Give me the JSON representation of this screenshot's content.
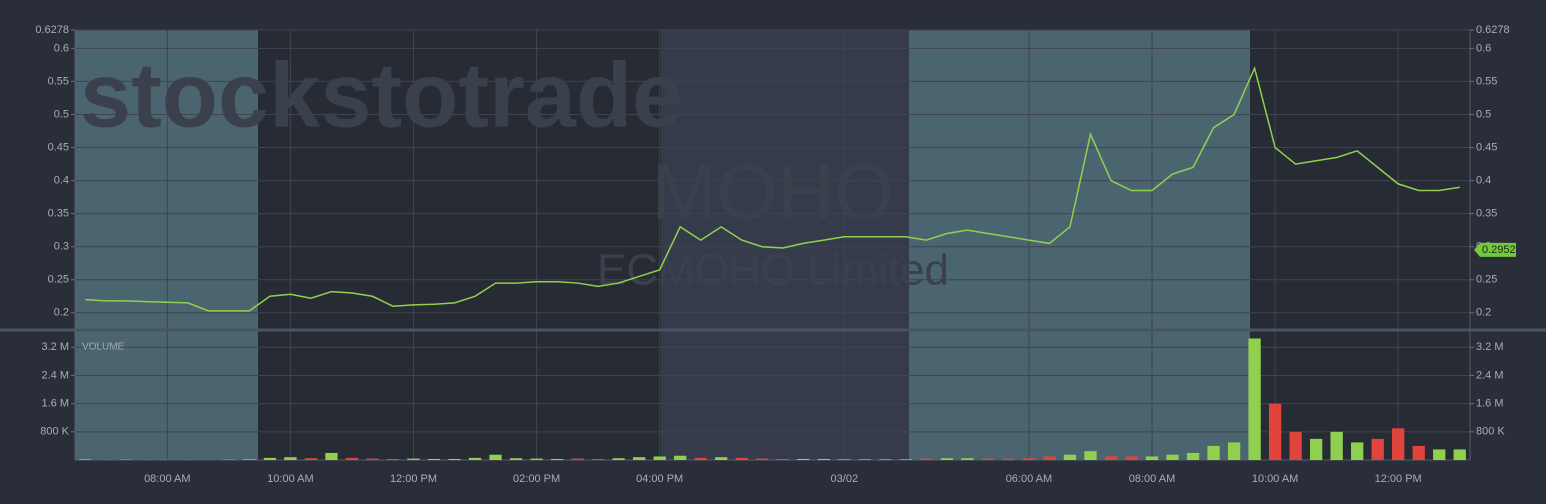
{
  "chart_data": [
    {
      "type": "line",
      "watermark": "stockstotrade",
      "symbol": "MOHO",
      "company": "ECMOHO Limited",
      "last_price": 0.2952,
      "color": "#8fd14f",
      "grid": true,
      "categories": [
        null,
        null,
        null,
        null,
        "08:00 AM",
        null,
        null,
        null,
        null,
        null,
        "10:00 AM",
        null,
        null,
        null,
        null,
        null,
        "12:00 PM",
        null,
        null,
        null,
        null,
        null,
        "02:00 PM",
        null,
        null,
        null,
        null,
        null,
        "04:00 PM",
        null,
        null,
        null,
        null,
        null,
        null,
        null,
        null,
        "03/02",
        null,
        null,
        null,
        null,
        null,
        null,
        null,
        null,
        "06:00 AM",
        null,
        null,
        null,
        null,
        null,
        "08:00 AM",
        null,
        null,
        null,
        null,
        null,
        "10:00 AM",
        null,
        null,
        null,
        null,
        null,
        "12:00 PM",
        null,
        null,
        null
      ],
      "values": [
        0.22,
        0.218,
        0.218,
        0.217,
        0.216,
        0.215,
        0.203,
        0.203,
        0.203,
        0.225,
        0.228,
        0.222,
        0.232,
        0.23,
        0.225,
        0.21,
        0.212,
        0.213,
        0.215,
        0.225,
        0.245,
        0.245,
        0.247,
        0.247,
        0.245,
        0.24,
        0.245,
        0.255,
        0.265,
        0.33,
        0.31,
        0.33,
        0.31,
        0.3,
        0.298,
        0.305,
        0.31,
        0.315,
        0.315,
        0.315,
        0.315,
        0.31,
        0.32,
        0.325,
        0.32,
        0.315,
        0.31,
        0.305,
        0.33,
        0.47,
        0.4,
        0.385,
        0.385,
        0.41,
        0.42,
        0.48,
        0.5,
        0.57,
        0.45,
        0.425,
        0.43,
        0.435,
        0.445,
        0.42,
        0.395,
        0.385,
        0.385,
        0.39
      ],
      "ylim": [
        0.174,
        0.6278
      ],
      "yticks": [
        0.2,
        0.25,
        0.3,
        0.35,
        0.4,
        0.45,
        0.5,
        0.55,
        0.6,
        0.6278
      ]
    },
    {
      "type": "bar",
      "label": "VOLUME",
      "color": "#8fd14f",
      "down_color": "#e0443c",
      "grid": true,
      "categories": [
        null,
        null,
        null,
        null,
        "08:00 AM",
        null,
        null,
        null,
        null,
        null,
        "10:00 AM",
        null,
        null,
        null,
        null,
        null,
        "12:00 PM",
        null,
        null,
        null,
        null,
        null,
        "02:00 PM",
        null,
        null,
        null,
        null,
        null,
        "04:00 PM",
        null,
        null,
        null,
        null,
        null,
        null,
        null,
        null,
        "03/02",
        null,
        null,
        null,
        null,
        null,
        null,
        null,
        null,
        "06:00 AM",
        null,
        null,
        null,
        null,
        null,
        "08:00 AM",
        null,
        null,
        null,
        null,
        null,
        "10:00 AM",
        null,
        null,
        null,
        null,
        null,
        "12:00 PM",
        null,
        null,
        null
      ],
      "values": [
        20000,
        10000,
        10000,
        10000,
        10000,
        10000,
        10000,
        10000,
        20000,
        60000,
        80000,
        50000,
        200000,
        60000,
        40000,
        30000,
        40000,
        30000,
        30000,
        60000,
        150000,
        50000,
        40000,
        30000,
        40000,
        30000,
        50000,
        80000,
        100000,
        120000,
        60000,
        80000,
        60000,
        40000,
        30000,
        30000,
        30000,
        20000,
        20000,
        20000,
        20000,
        40000,
        50000,
        50000,
        40000,
        40000,
        50000,
        100000,
        150000,
        250000,
        100000,
        100000,
        100000,
        150000,
        200000,
        400000,
        500000,
        3450000,
        1600000,
        800000,
        600000,
        800000,
        500000,
        600000,
        900000,
        400000,
        300000,
        300000
      ],
      "ylim": [
        0,
        3690000
      ],
      "yticks": [
        {
          "value": 800000,
          "label": "800 K"
        },
        {
          "value": 1600000,
          "label": "1.6 M"
        },
        {
          "value": 2400000,
          "label": "2.4 M"
        },
        {
          "value": 3200000,
          "label": "3.2 M"
        }
      ]
    }
  ]
}
